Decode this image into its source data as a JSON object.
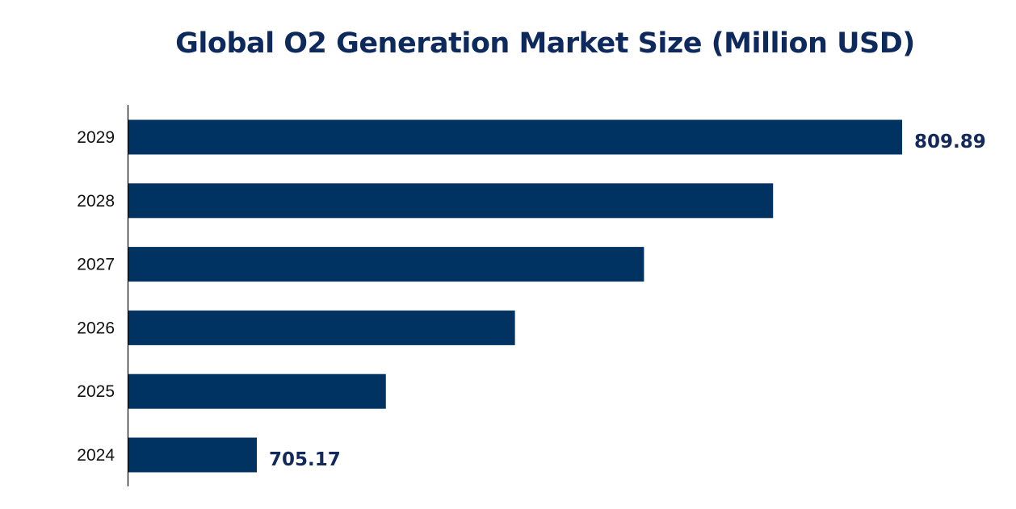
{
  "chart_data": {
    "type": "bar",
    "orientation": "horizontal",
    "title": "Global O2 Generation Market Size (Million USD)",
    "xlabel": "",
    "ylabel": "",
    "categories": [
      "2029",
      "2028",
      "2027",
      "2026",
      "2025",
      "2024"
    ],
    "values": [
      809.89,
      788.95,
      768.0,
      747.06,
      726.11,
      705.17
    ],
    "data_labels": [
      "809.89",
      "",
      "",
      "",
      "",
      "705.17"
    ],
    "xlim": [
      684.2,
      820
    ],
    "grid": false,
    "legend": "none",
    "bar_color": "#003361",
    "label_color": "#13295b"
  }
}
